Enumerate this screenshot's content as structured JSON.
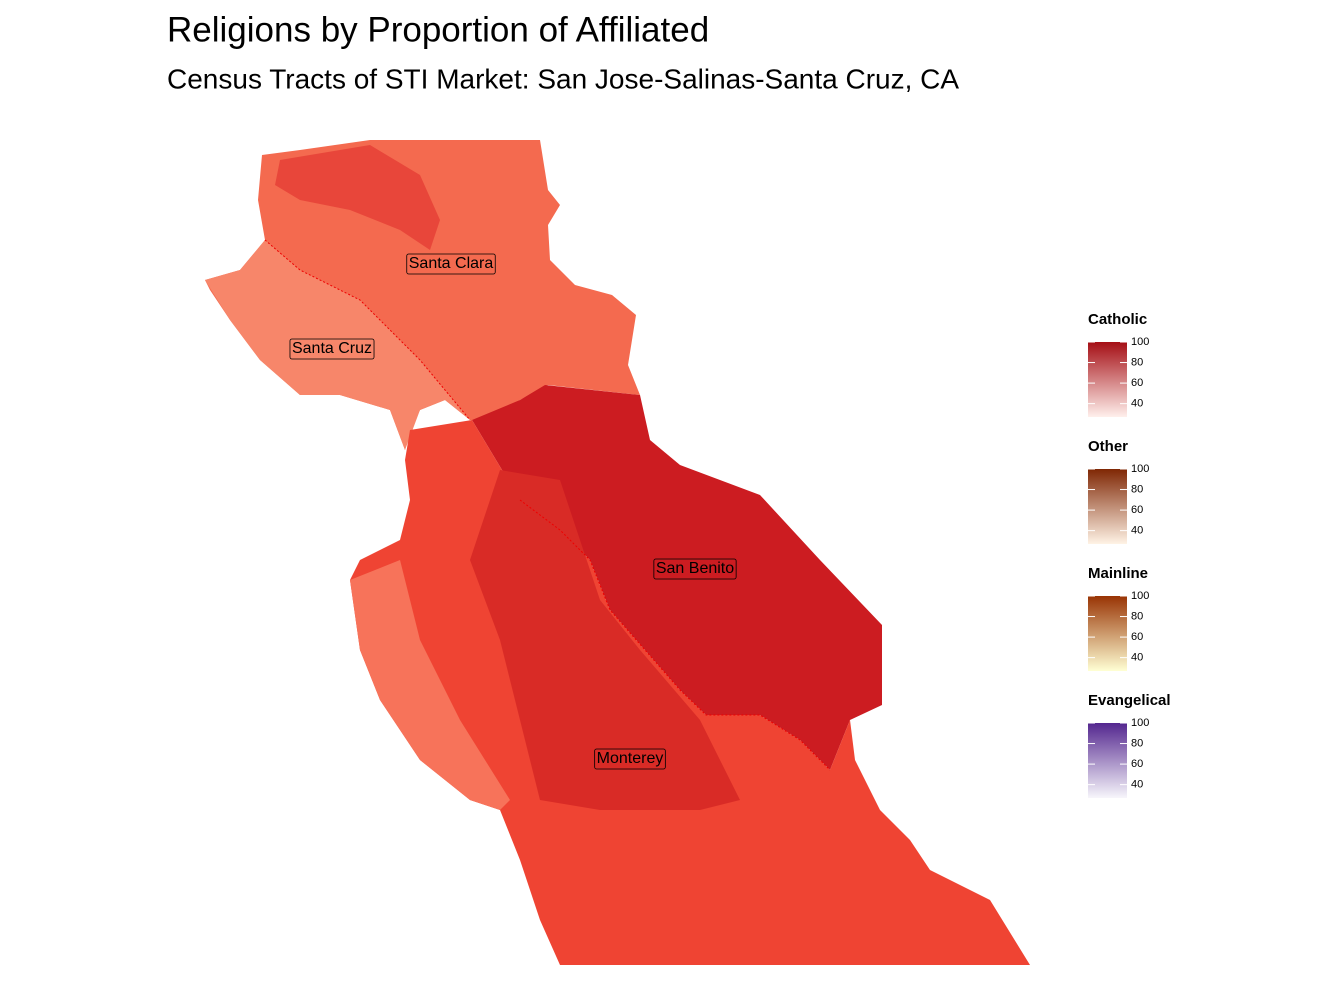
{
  "title": "Religions by Proportion of Affiliated",
  "subtitle": "Census Tracts of STI Market: San Jose-Salinas-Santa Cruz, CA",
  "regions": [
    {
      "label": "Santa Clara"
    },
    {
      "label": "Santa Cruz"
    },
    {
      "label": "San Benito"
    },
    {
      "label": "Monterey"
    }
  ],
  "legends": [
    {
      "title": "Catholic",
      "colors": [
        "#fff0ec",
        "#a50f15"
      ],
      "lim": [
        27,
        100
      ],
      "ticks": [
        40,
        60,
        80,
        100
      ]
    },
    {
      "title": "Other",
      "colors": [
        "#fff3e6",
        "#7f2704"
      ],
      "lim": [
        27,
        100
      ],
      "ticks": [
        40,
        60,
        80,
        100
      ]
    },
    {
      "title": "Mainline",
      "colors": [
        "#ffffd4",
        "#993404"
      ],
      "lim": [
        27,
        100
      ],
      "ticks": [
        40,
        60,
        80,
        100
      ]
    },
    {
      "title": "Evangelical",
      "colors": [
        "#f7f6fb",
        "#54278f"
      ],
      "lim": [
        27,
        100
      ],
      "ticks": [
        40,
        60,
        80,
        100
      ]
    }
  ]
}
